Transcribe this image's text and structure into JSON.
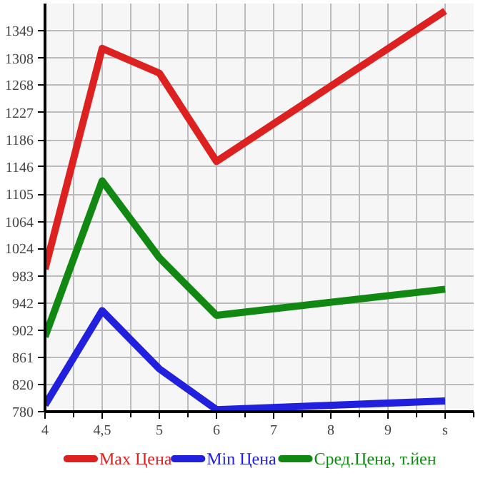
{
  "chart_data": {
    "type": "line",
    "categories": [
      "4",
      "4,5",
      "5",
      "6",
      "7",
      "8",
      "9",
      "s"
    ],
    "series": [
      {
        "name": "Max Цена",
        "color": "#dd2020",
        "values": [
          993,
          1323,
          1286,
          1154,
          null,
          null,
          null,
          1379
        ]
      },
      {
        "name": "Min Цена",
        "color": "#2020dd",
        "values": [
          790,
          931,
          844,
          783,
          null,
          null,
          null,
          796
        ]
      },
      {
        "name": "Сред.Цена, т.йен",
        "color": "#118811",
        "values": [
          892,
          1125,
          1010,
          924,
          null,
          null,
          null,
          963
        ]
      }
    ],
    "ylim": [
      780,
      1390
    ],
    "yticks": [
      780,
      820,
      861,
      902,
      942,
      983,
      1024,
      1064,
      1105,
      1146,
      1186,
      1227,
      1268,
      1308,
      1349
    ],
    "grid": true,
    "legend": "bottom",
    "marker": "none",
    "line_style": "solid"
  }
}
